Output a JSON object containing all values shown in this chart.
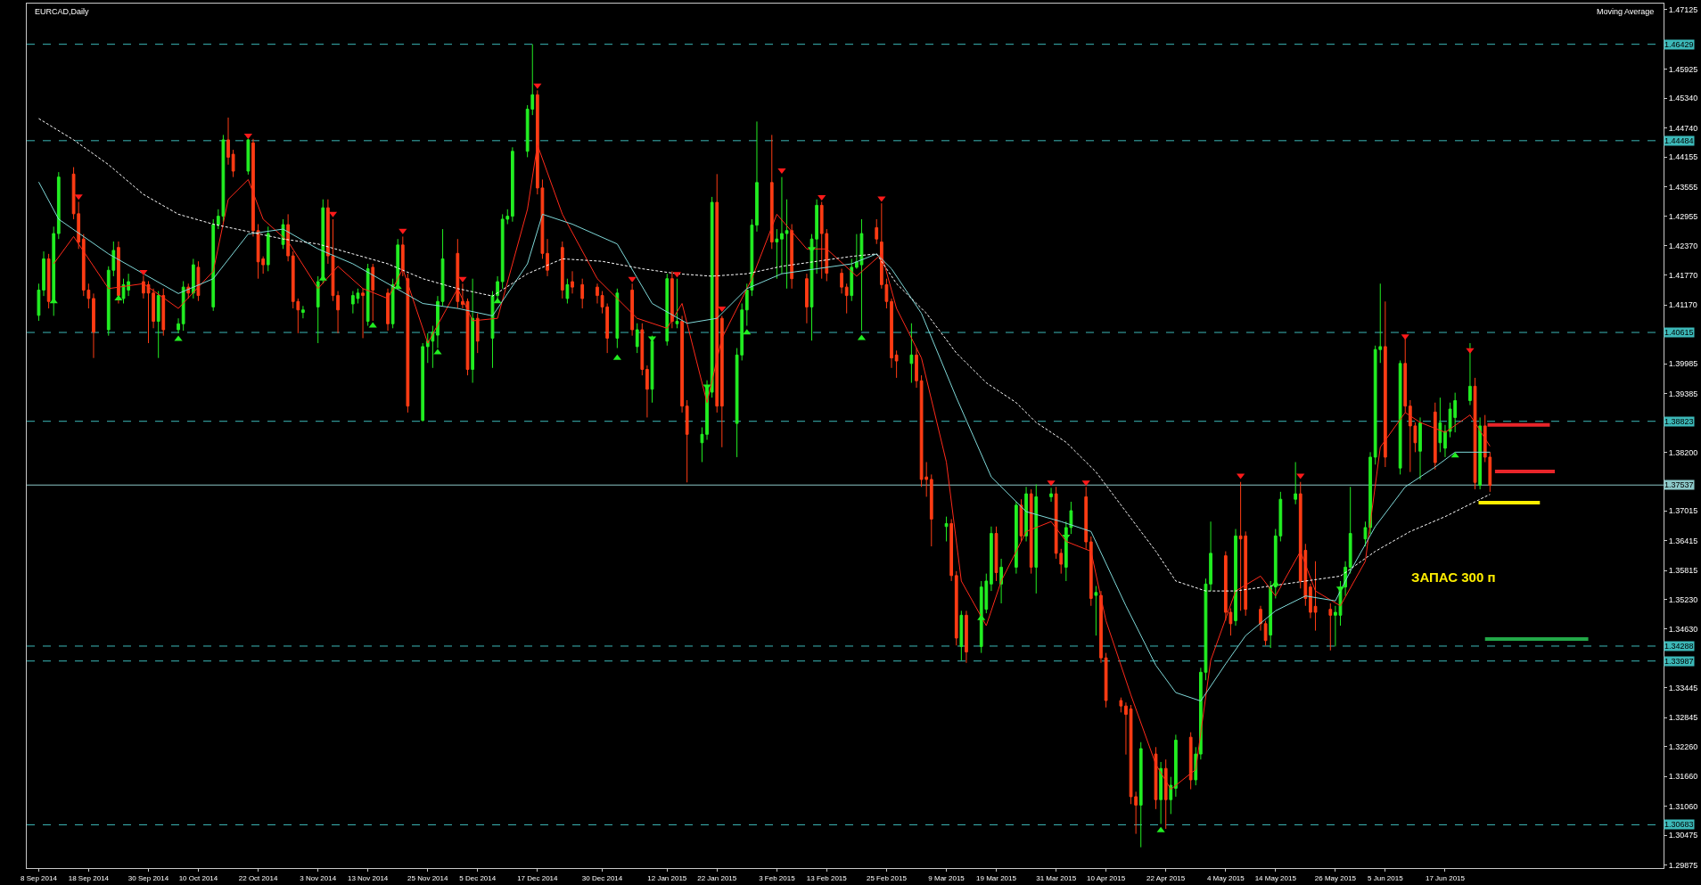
{
  "chart_data": {
    "type": "candlestick",
    "title": "EURCAD,Daily",
    "annotations": [
      "Moving Average",
      "ЗАПАС 300 п"
    ],
    "x": [
      "2014-09-08",
      "2014-09-09",
      "2014-09-10",
      "2014-09-11",
      "2014-09-12",
      "2014-09-15",
      "2014-09-16",
      "2014-09-17",
      "2014-09-18",
      "2014-09-19",
      "2014-09-22",
      "2014-09-23",
      "2014-09-24",
      "2014-09-25",
      "2014-09-26",
      "2014-09-29",
      "2014-09-30",
      "2014-10-01",
      "2014-10-02",
      "2014-10-03",
      "2014-10-06",
      "2014-10-07",
      "2014-10-08",
      "2014-10-09",
      "2014-10-10",
      "2014-10-13",
      "2014-10-14",
      "2014-10-15",
      "2014-10-16",
      "2014-10-17",
      "2014-10-20",
      "2014-10-21",
      "2014-10-22",
      "2014-10-23",
      "2014-10-24",
      "2014-10-27",
      "2014-10-28",
      "2014-10-29",
      "2014-10-30",
      "2014-10-31",
      "2014-11-03",
      "2014-11-04",
      "2014-11-05",
      "2014-11-06",
      "2014-11-07",
      "2014-11-10",
      "2014-11-11",
      "2014-11-12",
      "2014-11-13",
      "2014-11-14",
      "2014-11-17",
      "2014-11-18",
      "2014-11-19",
      "2014-11-20",
      "2014-11-21",
      "2014-11-24",
      "2014-11-25",
      "2014-11-26",
      "2014-11-27",
      "2014-11-28",
      "2014-12-01",
      "2014-12-02",
      "2014-12-03",
      "2014-12-04",
      "2014-12-05",
      "2014-12-08",
      "2014-12-09",
      "2014-12-10",
      "2014-12-11",
      "2014-12-12",
      "2014-12-15",
      "2014-12-16",
      "2014-12-17",
      "2014-12-18",
      "2014-12-19",
      "2014-12-22",
      "2014-12-23",
      "2014-12-24",
      "2014-12-26",
      "2014-12-29",
      "2014-12-30",
      "2014-12-31",
      "2015-01-02",
      "2015-01-05",
      "2015-01-06",
      "2015-01-07",
      "2015-01-08",
      "2015-01-09",
      "2015-01-12",
      "2015-01-13",
      "2015-01-14",
      "2015-01-15",
      "2015-01-16",
      "2015-01-19",
      "2015-01-20",
      "2015-01-21",
      "2015-01-22",
      "2015-01-23",
      "2015-01-26",
      "2015-01-27",
      "2015-01-28",
      "2015-01-29",
      "2015-01-30",
      "2015-02-02",
      "2015-02-03",
      "2015-02-04",
      "2015-02-05",
      "2015-02-06",
      "2015-02-09",
      "2015-02-10",
      "2015-02-11",
      "2015-02-12",
      "2015-02-13",
      "2015-02-16",
      "2015-02-17",
      "2015-02-18",
      "2015-02-19",
      "2015-02-20",
      "2015-02-23",
      "2015-02-24",
      "2015-02-25",
      "2015-02-26",
      "2015-02-27",
      "2015-03-02",
      "2015-03-03",
      "2015-03-04",
      "2015-03-05",
      "2015-03-06",
      "2015-03-09",
      "2015-03-10",
      "2015-03-11",
      "2015-03-12",
      "2015-03-13",
      "2015-03-16",
      "2015-03-17",
      "2015-03-18",
      "2015-03-19",
      "2015-03-20",
      "2015-03-23",
      "2015-03-24",
      "2015-03-25",
      "2015-03-26",
      "2015-03-27",
      "2015-03-30",
      "2015-03-31",
      "2015-04-01",
      "2015-04-02",
      "2015-04-03",
      "2015-04-06",
      "2015-04-07",
      "2015-04-08",
      "2015-04-09",
      "2015-04-10",
      "2015-04-13",
      "2015-04-14",
      "2015-04-15",
      "2015-04-16",
      "2015-04-17",
      "2015-04-20",
      "2015-04-21",
      "2015-04-22",
      "2015-04-23",
      "2015-04-24",
      "2015-04-27",
      "2015-04-28",
      "2015-04-29",
      "2015-04-30",
      "2015-05-01",
      "2015-05-04",
      "2015-05-05",
      "2015-05-06",
      "2015-05-07",
      "2015-05-08",
      "2015-05-11",
      "2015-05-12",
      "2015-05-13",
      "2015-05-14",
      "2015-05-15",
      "2015-05-18",
      "2015-05-19",
      "2015-05-20",
      "2015-05-21",
      "2015-05-22",
      "2015-05-25",
      "2015-05-26",
      "2015-05-27",
      "2015-05-28",
      "2015-05-29",
      "2015-06-01",
      "2015-06-02",
      "2015-06-03",
      "2015-06-04",
      "2015-06-05",
      "2015-06-08",
      "2015-06-09",
      "2015-06-10",
      "2015-06-11",
      "2015-06-12",
      "2015-06-15",
      "2015-06-16",
      "2015-06-17",
      "2015-06-18",
      "2015-06-19",
      "2015-06-22",
      "2015-06-23",
      "2015-06-24",
      "2015-06-25",
      "2015-06-26"
    ],
    "ohlc": [
      [
        1.4096,
        1.416,
        1.4085,
        1.4147
      ],
      [
        1.4147,
        1.4225,
        1.4135,
        1.421
      ],
      [
        1.421,
        1.422,
        1.411,
        1.4124
      ],
      [
        1.4124,
        1.4275,
        1.4095,
        1.4261
      ],
      [
        1.4261,
        1.4385,
        1.425,
        1.4375
      ],
      [
        1.4381,
        1.4395,
        1.429,
        1.4301
      ],
      [
        1.4301,
        1.4325,
        1.423,
        1.4244
      ],
      [
        1.425,
        1.426,
        1.4135,
        1.4147
      ],
      [
        1.4147,
        1.416,
        1.411,
        1.413
      ],
      [
        1.413,
        1.414,
        1.401,
        1.4062
      ],
      [
        1.4067,
        1.4195,
        1.4055,
        1.4187
      ],
      [
        1.4187,
        1.4245,
        1.4175,
        1.4227
      ],
      [
        1.4233,
        1.4245,
        1.412,
        1.4136
      ],
      [
        1.413,
        1.417,
        1.412,
        1.4158
      ],
      [
        1.4147,
        1.418,
        1.4135,
        1.4164
      ],
      [
        1.4164,
        1.4176,
        1.413,
        1.4141
      ],
      [
        1.4158,
        1.4165,
        1.404,
        1.4141
      ],
      [
        1.4141,
        1.415,
        1.407,
        1.4084
      ],
      [
        1.4084,
        1.4145,
        1.401,
        1.4136
      ],
      [
        1.4136,
        1.415,
        1.4055,
        1.4067
      ],
      [
        1.4067,
        1.409,
        1.406,
        1.4079
      ],
      [
        1.4079,
        1.4165,
        1.4065,
        1.4153
      ],
      [
        1.4153,
        1.416,
        1.413,
        1.4141
      ],
      [
        1.4141,
        1.421,
        1.413,
        1.4198
      ],
      [
        1.4193,
        1.4205,
        1.4125,
        1.4136
      ],
      [
        1.4113,
        1.429,
        1.4105,
        1.4279
      ],
      [
        1.4279,
        1.431,
        1.427,
        1.4296
      ],
      [
        1.4296,
        1.446,
        1.4285,
        1.445
      ],
      [
        1.445,
        1.4495,
        1.44,
        1.4415
      ],
      [
        1.4421,
        1.443,
        1.4375,
        1.4387
      ],
      [
        1.4387,
        1.4452,
        1.438,
        1.445
      ],
      [
        1.4444,
        1.4452,
        1.4255,
        1.4267
      ],
      [
        1.4267,
        1.428,
        1.417,
        1.4204
      ],
      [
        1.421,
        1.4215,
        1.418,
        1.4198
      ],
      [
        1.4198,
        1.4275,
        1.4185,
        1.4261
      ],
      [
        1.4239,
        1.429,
        1.423,
        1.4279
      ],
      [
        1.4279,
        1.43,
        1.4205,
        1.4216
      ],
      [
        1.4216,
        1.4225,
        1.411,
        1.4124
      ],
      [
        1.4124,
        1.413,
        1.406,
        1.4107
      ],
      [
        1.4102,
        1.4115,
        1.409,
        1.4107
      ],
      [
        1.4113,
        1.4175,
        1.404,
        1.4164
      ],
      [
        1.417,
        1.433,
        1.416,
        1.4313
      ],
      [
        1.4313,
        1.433,
        1.42,
        1.4216
      ],
      [
        1.4216,
        1.429,
        1.4125,
        1.4136
      ],
      [
        1.4136,
        1.4145,
        1.406,
        1.4107
      ],
      [
        1.4119,
        1.4145,
        1.41,
        1.4136
      ],
      [
        1.413,
        1.415,
        1.412,
        1.4141
      ],
      [
        1.4141,
        1.415,
        1.405,
        1.4136
      ],
      [
        1.4084,
        1.42,
        1.4075,
        1.419
      ],
      [
        1.4193,
        1.42,
        1.4085,
        1.4147
      ],
      [
        1.4141,
        1.415,
        1.4065,
        1.4079
      ],
      [
        1.4079,
        1.417,
        1.407,
        1.4158
      ],
      [
        1.4158,
        1.425,
        1.415,
        1.4238
      ],
      [
        1.4238,
        1.4255,
        1.4175,
        1.4187
      ],
      [
        1.417,
        1.418,
        1.39,
        1.3913
      ],
      [
        1.3884,
        1.404,
        1.3882,
        1.4033
      ],
      [
        1.4033,
        1.406,
        1.4,
        1.4044
      ],
      [
        1.4044,
        1.4075,
        1.399,
        1.4062
      ],
      [
        1.4056,
        1.4135,
        1.403,
        1.4124
      ],
      [
        1.4124,
        1.427,
        1.4115,
        1.421
      ],
      [
        1.4221,
        1.425,
        1.411,
        1.4124
      ],
      [
        1.4124,
        1.416,
        1.411,
        1.4118
      ],
      [
        1.4124,
        1.413,
        1.3975,
        1.3987
      ],
      [
        1.3987,
        1.417,
        1.396,
        1.409
      ],
      [
        1.409,
        1.41,
        1.402,
        1.4044
      ],
      [
        1.405,
        1.4145,
        1.399,
        1.4136
      ],
      [
        1.4136,
        1.4175,
        1.4125,
        1.4164
      ],
      [
        1.4164,
        1.43,
        1.415,
        1.429
      ],
      [
        1.429,
        1.431,
        1.428,
        1.4296
      ],
      [
        1.4296,
        1.4435,
        1.4285,
        1.4427
      ],
      [
        1.4427,
        1.452,
        1.4415,
        1.4512
      ],
      [
        1.4512,
        1.4643,
        1.45,
        1.4541
      ],
      [
        1.4541,
        1.455,
        1.434,
        1.4353
      ],
      [
        1.4353,
        1.437,
        1.421,
        1.4221
      ],
      [
        1.4221,
        1.425,
        1.4175,
        1.4187
      ],
      [
        1.4233,
        1.4245,
        1.413,
        1.4147
      ],
      [
        1.413,
        1.417,
        1.412,
        1.4158
      ],
      [
        1.4164,
        1.4185,
        1.414,
        1.4153
      ],
      [
        1.4158,
        1.417,
        1.411,
        1.413
      ],
      [
        1.4153,
        1.416,
        1.412,
        1.4136
      ],
      [
        1.4136,
        1.4145,
        1.41,
        1.4113
      ],
      [
        1.4113,
        1.412,
        1.402,
        1.405
      ],
      [
        1.405,
        1.415,
        1.403,
        1.4141
      ],
      [
        1.4147,
        1.416,
        1.4055,
        1.4067
      ],
      [
        1.4033,
        1.408,
        1.402,
        1.4067
      ],
      [
        1.4067,
        1.408,
        1.3975,
        1.3987
      ],
      [
        1.3987,
        1.3995,
        1.389,
        1.3947
      ],
      [
        1.3947,
        1.4055,
        1.392,
        1.4044
      ],
      [
        1.4044,
        1.418,
        1.4035,
        1.417
      ],
      [
        1.417,
        1.4185,
        1.407,
        1.4084
      ],
      [
        1.4079,
        1.417,
        1.407,
        1.4084
      ],
      [
        1.4084,
        1.4095,
        1.39,
        1.3913
      ],
      [
        1.3913,
        1.3925,
        1.3759,
        1.3856
      ],
      [
        1.3839,
        1.387,
        1.38,
        1.3856
      ],
      [
        1.3856,
        1.3965,
        1.3845,
        1.3953
      ],
      [
        1.3941,
        1.4335,
        1.393,
        1.4324
      ],
      [
        1.4324,
        1.4381,
        1.39,
        1.3913
      ],
      [
        1.409,
        1.4095,
        1.383,
        1.3913
      ],
      [
        1.3878,
        1.403,
        1.381,
        1.4016
      ],
      [
        1.4016,
        1.412,
        1.4005,
        1.4107
      ],
      [
        1.4107,
        1.416,
        1.4075,
        1.4147
      ],
      [
        1.4147,
        1.429,
        1.4135,
        1.4278
      ],
      [
        1.4278,
        1.4487,
        1.4265,
        1.4364
      ],
      [
        1.4364,
        1.446,
        1.423,
        1.4244
      ],
      [
        1.4244,
        1.427,
        1.417,
        1.425
      ],
      [
        1.425,
        1.4375,
        1.418,
        1.4261
      ],
      [
        1.4261,
        1.433,
        1.415,
        1.4267
      ],
      [
        1.4267,
        1.428,
        1.415,
        1.417
      ],
      [
        1.417,
        1.418,
        1.408,
        1.4113
      ],
      [
        1.4113,
        1.426,
        1.4045,
        1.425
      ],
      [
        1.425,
        1.433,
        1.418,
        1.4318
      ],
      [
        1.4318,
        1.4325,
        1.417,
        1.4261
      ],
      [
        1.4261,
        1.427,
        1.4165,
        1.4181
      ],
      [
        1.4181,
        1.419,
        1.414,
        1.4153
      ],
      [
        1.4153,
        1.416,
        1.41,
        1.4136
      ],
      [
        1.4136,
        1.421,
        1.4125,
        1.4193
      ],
      [
        1.4193,
        1.426,
        1.419,
        1.4204
      ],
      [
        1.4198,
        1.429,
        1.4065,
        1.4261
      ],
      [
        1.4273,
        1.429,
        1.424,
        1.425
      ],
      [
        1.4244,
        1.4322,
        1.415,
        1.4158
      ],
      [
        1.4158,
        1.417,
        1.411,
        1.4124
      ],
      [
        1.4124,
        1.413,
        1.399,
        1.401
      ],
      [
        1.4016,
        1.4025,
        1.397,
        1.4004
      ],
      [
        1.3999,
        1.408,
        1.396,
        1.4016
      ],
      [
        1.4016,
        1.403,
        1.395,
        1.3964
      ],
      [
        1.3964,
        1.3975,
        1.375,
        1.3765
      ],
      [
        1.377,
        1.38,
        1.373,
        1.3765
      ],
      [
        1.3765,
        1.3775,
        1.363,
        1.3685
      ],
      [
        1.367,
        1.369,
        1.364,
        1.3676
      ],
      [
        1.3676,
        1.3685,
        1.356,
        1.3571
      ],
      [
        1.3571,
        1.358,
        1.343,
        1.3445
      ],
      [
        1.3428,
        1.35,
        1.34,
        1.3491
      ],
      [
        1.3491,
        1.35,
        1.3395,
        1.3417
      ],
      [
        1.3428,
        1.356,
        1.3415,
        1.3548
      ],
      [
        1.3503,
        1.3575,
        1.3495,
        1.356
      ],
      [
        1.3554,
        1.367,
        1.354,
        1.3656
      ],
      [
        1.3656,
        1.367,
        1.356,
        1.3577
      ],
      [
        1.3554,
        1.3605,
        1.3515,
        1.3588
      ],
      [
        1.3588,
        1.372,
        1.3575,
        1.3713
      ],
      [
        1.3713,
        1.3725,
        1.364,
        1.3651
      ],
      [
        1.3651,
        1.375,
        1.364,
        1.3736
      ],
      [
        1.3736,
        1.3745,
        1.3575,
        1.3588
      ],
      [
        1.3588,
        1.3755,
        1.3535,
        1.373
      ],
      [
        1.373,
        1.3748,
        1.372,
        1.3736
      ],
      [
        1.3736,
        1.375,
        1.3605,
        1.3616
      ],
      [
        1.3616,
        1.3625,
        1.3575,
        1.3594
      ],
      [
        1.3588,
        1.368,
        1.356,
        1.3668
      ],
      [
        1.3668,
        1.372,
        1.3655,
        1.3702
      ],
      [
        1.373,
        1.375,
        1.3625,
        1.3639
      ],
      [
        1.3639,
        1.365,
        1.351,
        1.3525
      ],
      [
        1.3531,
        1.355,
        1.345,
        1.3537
      ],
      [
        1.3531,
        1.354,
        1.3395,
        1.3405
      ],
      [
        1.3405,
        1.3415,
        1.3305,
        1.3319
      ],
      [
        1.3319,
        1.3325,
        1.3295,
        1.3308
      ],
      [
        1.3308,
        1.3315,
        1.321,
        1.3291
      ],
      [
        1.3302,
        1.331,
        1.311,
        1.3125
      ],
      [
        1.3125,
        1.3135,
        1.305,
        1.3108
      ],
      [
        1.3108,
        1.3235,
        1.3023,
        1.3222
      ],
      [
        1.3211,
        1.3225,
        1.31,
        1.3119
      ],
      [
        1.3119,
        1.3195,
        1.307,
        1.3182
      ],
      [
        1.3182,
        1.32,
        1.306,
        1.3119
      ],
      [
        1.3119,
        1.3165,
        1.309,
        1.3148
      ],
      [
        1.3142,
        1.325,
        1.3125,
        1.3239
      ],
      [
        1.3245,
        1.3255,
        1.314,
        1.3159
      ],
      [
        1.3159,
        1.3225,
        1.3148,
        1.3211
      ],
      [
        1.3211,
        1.3385,
        1.32,
        1.3376
      ],
      [
        1.3376,
        1.3565,
        1.336,
        1.3554
      ],
      [
        1.3554,
        1.368,
        1.354,
        1.3616
      ],
      [
        1.3611,
        1.362,
        1.348,
        1.3497
      ],
      [
        1.3497,
        1.3505,
        1.345,
        1.3474
      ],
      [
        1.348,
        1.3665,
        1.347,
        1.3651
      ],
      [
        1.3651,
        1.376,
        1.35,
        1.3645
      ],
      [
        1.3651,
        1.366,
        1.349,
        1.3503
      ],
      [
        1.3503,
        1.351,
        1.346,
        1.3474
      ],
      [
        1.3474,
        1.348,
        1.343,
        1.344
      ],
      [
        1.3451,
        1.356,
        1.3425,
        1.3548
      ],
      [
        1.3548,
        1.3665,
        1.3525,
        1.3651
      ],
      [
        1.3651,
        1.374,
        1.364,
        1.3725
      ],
      [
        1.3725,
        1.38,
        1.3715,
        1.3736
      ],
      [
        1.3736,
        1.376,
        1.3545,
        1.356
      ],
      [
        1.3622,
        1.3635,
        1.351,
        1.3525
      ],
      [
        1.3548,
        1.3555,
        1.3485,
        1.3497
      ],
      [
        1.3509,
        1.36,
        1.346,
        1.3497
      ],
      [
        1.3503,
        1.3515,
        1.342,
        1.3491
      ],
      [
        1.3491,
        1.351,
        1.3428,
        1.3497
      ],
      [
        1.3491,
        1.356,
        1.347,
        1.3548
      ],
      [
        1.3548,
        1.36,
        1.353,
        1.3588
      ],
      [
        1.3588,
        1.375,
        1.3575,
        1.3656
      ],
      [
        1.3645,
        1.368,
        1.363,
        1.3668
      ],
      [
        1.3668,
        1.382,
        1.3655,
        1.381
      ],
      [
        1.381,
        1.4035,
        1.3795,
        1.4027
      ],
      [
        1.4027,
        1.416,
        1.4,
        1.4033
      ],
      [
        1.4033,
        1.4124,
        1.379,
        1.381
      ],
      [
        1.3788,
        1.4005,
        1.3775,
        1.3999
      ],
      [
        1.3999,
        1.405,
        1.39,
        1.3913
      ],
      [
        1.3913,
        1.3925,
        1.378,
        1.3873
      ],
      [
        1.3873,
        1.388,
        1.382,
        1.3839
      ],
      [
        1.3822,
        1.389,
        1.3765,
        1.3879
      ],
      [
        1.3901,
        1.392,
        1.3785,
        1.3799
      ],
      [
        1.3839,
        1.393,
        1.382,
        1.3879
      ],
      [
        1.3828,
        1.3875,
        1.381,
        1.3862
      ],
      [
        1.3862,
        1.392,
        1.385,
        1.3907
      ],
      [
        1.389,
        1.394,
        1.386,
        1.3924
      ],
      [
        1.3924,
        1.404,
        1.3915,
        1.3953
      ],
      [
        1.3953,
        1.397,
        1.3745,
        1.3759
      ],
      [
        1.3753,
        1.389,
        1.3745,
        1.3873
      ],
      [
        1.3873,
        1.3895,
        1.38,
        1.381
      ],
      [
        1.381,
        1.382,
        1.374,
        1.3753
      ]
    ],
    "series": [
      {
        "type": "line",
        "color": "#ff2a1a",
        "line_style": "solid",
        "x": [
          "2014-09-11",
          "2014-09-15",
          "2014-09-22",
          "2014-09-29",
          "2014-10-06",
          "2014-10-13",
          "2014-10-16",
          "2014-10-20",
          "2014-10-23",
          "2014-10-28",
          "2014-11-03",
          "2014-11-07",
          "2014-11-12",
          "2014-11-17",
          "2014-11-20",
          "2014-11-25",
          "2014-12-01",
          "2014-12-04",
          "2014-12-09",
          "2014-12-15",
          "2014-12-17",
          "2014-12-22",
          "2014-12-29",
          "2015-01-06",
          "2015-01-12",
          "2015-01-15",
          "2015-01-20",
          "2015-01-23",
          "2015-01-29",
          "2015-02-03",
          "2015-02-09",
          "2015-02-13",
          "2015-02-19",
          "2015-02-24",
          "2015-02-27",
          "2015-03-04",
          "2015-03-09",
          "2015-03-12",
          "2015-03-17",
          "2015-03-20",
          "2015-03-25",
          "2015-03-30",
          "2015-04-02",
          "2015-04-07",
          "2015-04-10",
          "2015-04-15",
          "2015-04-20",
          "2015-04-23",
          "2015-04-28",
          "2015-05-01",
          "2015-05-06",
          "2015-05-11",
          "2015-05-14",
          "2015-05-19",
          "2015-05-22",
          "2015-05-27",
          "2015-06-01",
          "2015-06-04",
          "2015-06-09",
          "2015-06-12",
          "2015-06-17",
          "2015-06-22",
          "2015-06-26"
        ],
        "values": [
          1.42,
          1.4255,
          1.415,
          1.416,
          1.411,
          1.4185,
          1.433,
          1.437,
          1.429,
          1.4245,
          1.415,
          1.4195,
          1.415,
          1.413,
          1.419,
          1.404,
          1.415,
          1.4085,
          1.409,
          1.431,
          1.444,
          1.43,
          1.417,
          1.409,
          1.407,
          1.412,
          1.392,
          1.405,
          1.417,
          1.43,
          1.423,
          1.423,
          1.4175,
          1.422,
          1.411,
          1.401,
          1.38,
          1.356,
          1.347,
          1.356,
          1.366,
          1.368,
          1.364,
          1.362,
          1.348,
          1.333,
          1.319,
          1.314,
          1.318,
          1.34,
          1.354,
          1.357,
          1.353,
          1.362,
          1.354,
          1.351,
          1.36,
          1.383,
          1.39,
          1.388,
          1.386,
          1.3895,
          1.3832
        ]
      },
      {
        "type": "line",
        "color": "#7fd8d8",
        "line_style": "solid",
        "x": [
          "2014-09-08",
          "2014-09-12",
          "2014-09-22",
          "2014-09-29",
          "2014-10-06",
          "2014-10-13",
          "2014-10-20",
          "2014-10-27",
          "2014-11-03",
          "2014-11-10",
          "2014-11-17",
          "2014-11-24",
          "2014-12-01",
          "2014-12-08",
          "2014-12-15",
          "2014-12-18",
          "2014-12-24",
          "2015-01-02",
          "2015-01-09",
          "2015-01-16",
          "2015-01-22",
          "2015-01-28",
          "2015-02-04",
          "2015-02-11",
          "2015-02-18",
          "2015-02-23",
          "2015-02-26",
          "2015-03-04",
          "2015-03-11",
          "2015-03-18",
          "2015-03-25",
          "2015-04-01",
          "2015-04-07",
          "2015-04-14",
          "2015-04-20",
          "2015-04-24",
          "2015-04-29",
          "2015-05-04",
          "2015-05-08",
          "2015-05-14",
          "2015-05-20",
          "2015-05-26",
          "2015-05-29",
          "2015-06-03",
          "2015-06-09",
          "2015-06-15",
          "2015-06-19",
          "2015-06-26"
        ],
        "values": [
          1.4365,
          1.429,
          1.422,
          1.418,
          1.414,
          1.417,
          1.426,
          1.427,
          1.423,
          1.42,
          1.416,
          1.412,
          1.411,
          1.4095,
          1.42,
          1.43,
          1.428,
          1.424,
          1.412,
          1.408,
          1.409,
          1.415,
          1.418,
          1.419,
          1.42,
          1.422,
          1.419,
          1.41,
          1.393,
          1.377,
          1.37,
          1.368,
          1.366,
          1.351,
          1.339,
          1.3335,
          1.3318,
          1.3393,
          1.345,
          1.35,
          1.353,
          1.352,
          1.358,
          1.367,
          1.375,
          1.379,
          1.382,
          1.382
        ]
      },
      {
        "type": "line",
        "color": "#ffffff",
        "line_style": "dotted",
        "x": [
          "2014-09-08",
          "2014-09-15",
          "2014-09-22",
          "2014-09-29",
          "2014-10-06",
          "2014-10-13",
          "2014-10-20",
          "2014-10-27",
          "2014-11-03",
          "2014-11-10",
          "2014-11-17",
          "2014-11-24",
          "2014-12-01",
          "2014-12-08",
          "2014-12-15",
          "2014-12-22",
          "2014-12-30",
          "2015-01-07",
          "2015-01-14",
          "2015-01-21",
          "2015-01-28",
          "2015-02-04",
          "2015-02-11",
          "2015-02-18",
          "2015-02-23",
          "2015-02-27",
          "2015-03-05",
          "2015-03-11",
          "2015-03-17",
          "2015-03-23",
          "2015-03-27",
          "2015-04-02",
          "2015-04-08",
          "2015-04-14",
          "2015-04-20",
          "2015-04-24",
          "2015-04-30",
          "2015-05-06",
          "2015-05-13",
          "2015-05-20",
          "2015-05-27",
          "2015-06-03",
          "2015-06-10",
          "2015-06-17",
          "2015-06-26"
        ],
        "values": [
          1.4493,
          1.445,
          1.44,
          1.434,
          1.43,
          1.428,
          1.4265,
          1.425,
          1.424,
          1.422,
          1.42,
          1.417,
          1.415,
          1.4135,
          1.418,
          1.421,
          1.4205,
          1.419,
          1.418,
          1.4175,
          1.418,
          1.4195,
          1.4205,
          1.4215,
          1.422,
          1.416,
          1.41,
          1.402,
          1.396,
          1.392,
          1.388,
          1.384,
          1.378,
          1.37,
          1.362,
          1.356,
          1.354,
          1.354,
          1.355,
          1.356,
          1.357,
          1.362,
          1.366,
          1.369,
          1.3735
        ]
      },
      {
        "type": "scatter",
        "color": "#ff1a1a",
        "marker": "triangle",
        "x": [
          "2014-09-16",
          "2014-09-29",
          "2014-10-20",
          "2014-11-06",
          "2014-11-20",
          "2014-12-02",
          "2014-12-17",
          "2015-01-05",
          "2015-01-14",
          "2015-01-23",
          "2015-02-04",
          "2015-02-12",
          "2015-02-24",
          "2015-03-30",
          "2015-04-06",
          "2015-05-07",
          "2015-05-19",
          "2015-06-09",
          "2015-06-22"
        ],
        "values": [
          1.4336,
          1.4184,
          1.4459,
          1.4301,
          1.4267,
          1.417,
          1.456,
          1.417,
          1.418,
          1.411,
          1.4389,
          1.4335,
          1.4332,
          1.3759,
          1.3759,
          1.3773,
          1.3773,
          1.4054,
          1.4026
        ]
      },
      {
        "type": "scatter",
        "color": "#22ee22",
        "marker": "triangle",
        "x": [
          "2014-09-11",
          "2014-09-24",
          "2014-10-06",
          "2014-11-04",
          "2014-11-14",
          "2014-11-19",
          "2014-11-27",
          "2014-12-09",
          "2015-01-02",
          "2015-01-09",
          "2015-01-20",
          "2015-01-28",
          "2015-02-10",
          "2015-02-20",
          "2015-03-16",
          "2015-04-02",
          "2015-04-21",
          "2015-05-14",
          "2015-05-27",
          "2015-06-19"
        ],
        "values": [
          1.4124,
          1.413,
          1.4048,
          1.417,
          1.4075,
          1.4153,
          1.4021,
          1.4124,
          1.401,
          1.405,
          1.3953,
          1.4061,
          1.423,
          1.405,
          1.3485,
          1.365,
          1.3057,
          1.3554,
          1.3545,
          1.3813
        ]
      },
      {
        "type": "line",
        "color": "#e8252a",
        "line_style": "solid",
        "x": [
          "2015-06-25T12:00",
          "2015-07-08"
        ],
        "values": [
          1.3875,
          1.3875
        ]
      },
      {
        "type": "line",
        "color": "#e8252a",
        "line_style": "solid",
        "x": [
          "2015-06-27",
          "2015-07-09"
        ],
        "values": [
          1.3781,
          1.3781
        ]
      },
      {
        "type": "line",
        "color": "#ffee00",
        "line_style": "solid",
        "x": [
          "2015-06-23T17:00",
          "2015-07-06"
        ],
        "values": [
          1.3718,
          1.3718
        ]
      },
      {
        "type": "line",
        "color": "#22a848",
        "line_style": "solid",
        "x": [
          "2015-06-25",
          "2015-07-15T17:00"
        ],
        "values": [
          1.3443,
          1.3443
        ]
      }
    ],
    "ref_lines": [
      {
        "axis": "y",
        "value": 1.46429,
        "label": "1.46429",
        "color": "#3cb8b8",
        "line_style": "dashed"
      },
      {
        "axis": "y",
        "value": 1.44484,
        "label": "1.44484",
        "color": "#3cb8b8",
        "line_style": "dashed"
      },
      {
        "axis": "y",
        "value": 1.40615,
        "label": "1.40615",
        "color": "#3cb8b8",
        "line_style": "dashed"
      },
      {
        "axis": "y",
        "value": 1.38823,
        "label": "1.38823",
        "color": "#3cb8b8",
        "line_style": "dashed"
      },
      {
        "axis": "y",
        "value": 1.37537,
        "label": "1.37537",
        "color": "#8cc8c8",
        "line_style": "solid"
      },
      {
        "axis": "y",
        "value": 1.34288,
        "label": "1.34288",
        "color": "#3cb8b8",
        "line_style": "dashed"
      },
      {
        "axis": "y",
        "value": 1.33987,
        "label": "1.33987",
        "color": "#3cb8b8",
        "line_style": "dashed"
      },
      {
        "axis": "y",
        "value": 1.30683,
        "label": "1.30683",
        "color": "#3cb8b8",
        "line_style": "dashed"
      }
    ],
    "xlim": [
      "2014-09-05T14:24",
      "2015-07-30T19:12"
    ],
    "xticks": [
      {
        "value": "2014-09-08",
        "label": "8 Sep 2014"
      },
      {
        "value": "2014-09-18",
        "label": "18 Sep 2014"
      },
      {
        "value": "2014-09-30",
        "label": "30 Sep 2014"
      },
      {
        "value": "2014-10-10",
        "label": "10 Oct 2014"
      },
      {
        "value": "2014-10-22",
        "label": "22 Oct 2014"
      },
      {
        "value": "2014-11-03",
        "label": "3 Nov 2014"
      },
      {
        "value": "2014-11-13",
        "label": "13 Nov 2014"
      },
      {
        "value": "2014-11-25",
        "label": "25 Nov 2014"
      },
      {
        "value": "2014-12-05",
        "label": "5 Dec 2014"
      },
      {
        "value": "2014-12-17",
        "label": "17 Dec 2014"
      },
      {
        "value": "2014-12-30",
        "label": "30 Dec 2014"
      },
      {
        "value": "2015-01-12",
        "label": "12 Jan 2015"
      },
      {
        "value": "2015-01-22",
        "label": "22 Jan 2015"
      },
      {
        "value": "2015-02-03",
        "label": "3 Feb 2015"
      },
      {
        "value": "2015-02-13",
        "label": "13 Feb 2015"
      },
      {
        "value": "2015-02-25",
        "label": "25 Feb 2015"
      },
      {
        "value": "2015-03-09",
        "label": "9 Mar 2015"
      },
      {
        "value": "2015-03-19",
        "label": "19 Mar 2015"
      },
      {
        "value": "2015-03-31",
        "label": "31 Mar 2015"
      },
      {
        "value": "2015-04-10",
        "label": "10 Apr 2015"
      },
      {
        "value": "2015-04-22",
        "label": "22 Apr 2015"
      },
      {
        "value": "2015-05-04",
        "label": "4 May 2015"
      },
      {
        "value": "2015-05-14",
        "label": "14 May 2015"
      },
      {
        "value": "2015-05-26",
        "label": "26 May 2015"
      },
      {
        "value": "2015-06-05",
        "label": "5 Jun 2015"
      },
      {
        "value": "2015-06-17",
        "label": "17 Jun 2015"
      }
    ],
    "ylim": [
      1.2981,
      1.4725
    ],
    "yticks": [
      {
        "value": 1.47125,
        "label": "1.47125"
      },
      {
        "value": 1.45925,
        "label": "1.45925"
      },
      {
        "value": 1.4534,
        "label": "1.45340"
      },
      {
        "value": 1.4474,
        "label": "1.44740"
      },
      {
        "value": 1.44155,
        "label": "1.44155"
      },
      {
        "value": 1.43555,
        "label": "1.43555"
      },
      {
        "value": 1.42955,
        "label": "1.42955"
      },
      {
        "value": 1.4237,
        "label": "1.42370"
      },
      {
        "value": 1.4177,
        "label": "1.41770"
      },
      {
        "value": 1.4117,
        "label": "1.41170"
      },
      {
        "value": 1.39985,
        "label": "1.39985"
      },
      {
        "value": 1.39385,
        "label": "1.39385"
      },
      {
        "value": 1.382,
        "label": "1.38200"
      },
      {
        "value": 1.37015,
        "label": "1.37015"
      },
      {
        "value": 1.36415,
        "label": "1.36415"
      },
      {
        "value": 1.35815,
        "label": "1.35815"
      },
      {
        "value": 1.3523,
        "label": "1.35230"
      },
      {
        "value": 1.3463,
        "label": "1.34630"
      },
      {
        "value": 1.33445,
        "label": "1.33445"
      },
      {
        "value": 1.32845,
        "label": "1.32845"
      },
      {
        "value": 1.3226,
        "label": "1.32260"
      },
      {
        "value": 1.3166,
        "label": "1.31660"
      },
      {
        "value": 1.3106,
        "label": "1.31060"
      },
      {
        "value": 1.30475,
        "label": "1.30475"
      },
      {
        "value": 1.29875,
        "label": "1.29875"
      }
    ]
  }
}
